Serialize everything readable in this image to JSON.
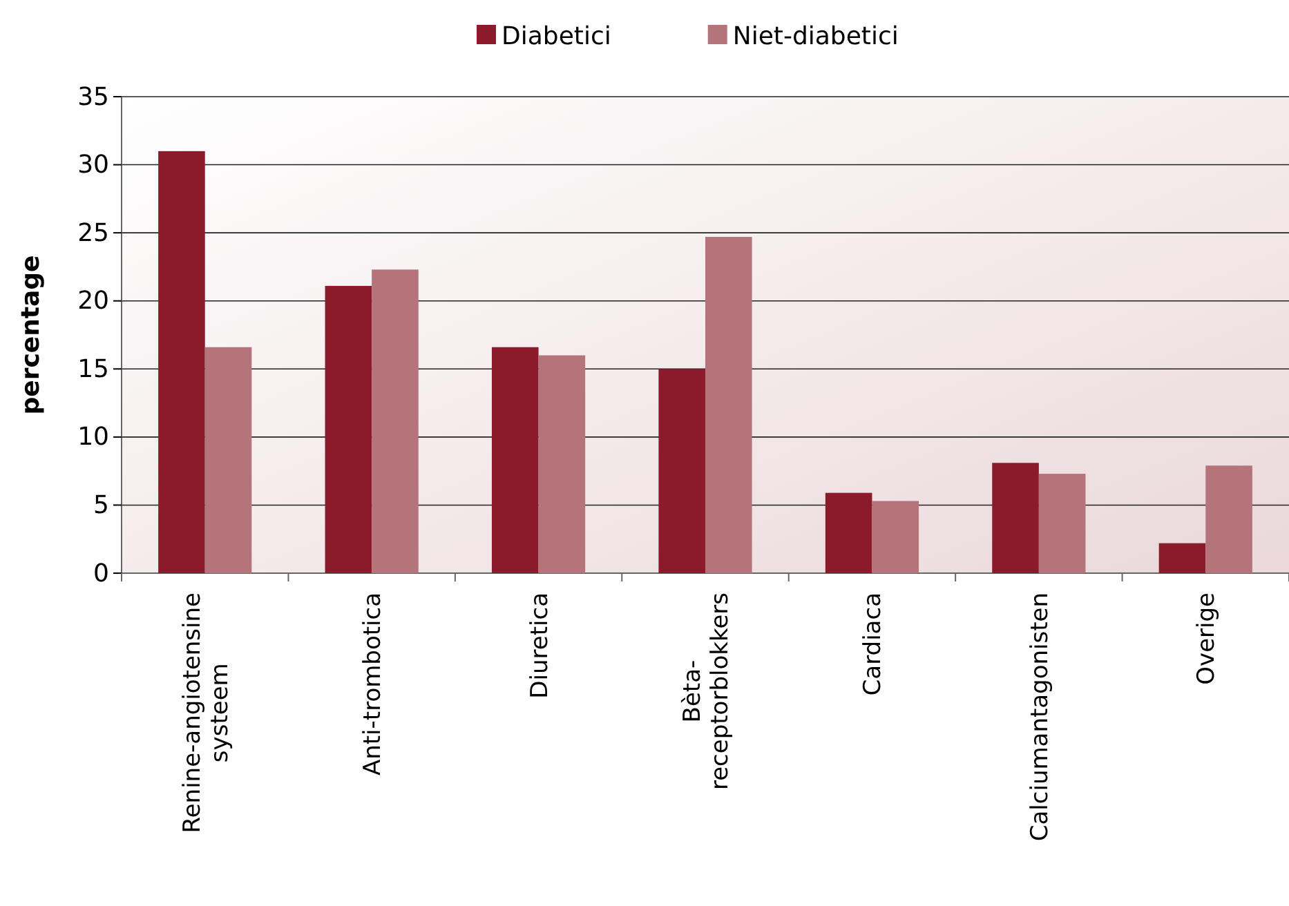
{
  "chart_data": {
    "type": "bar",
    "ylabel": "percentage",
    "categories": [
      "Renine-angiotensine systeem",
      "Anti-trombotica",
      "Diuretica",
      "Bèta-receptorblokkers",
      "Cardiaca",
      "Calciumantagonisten",
      "Overige"
    ],
    "series": [
      {
        "name": "Diabetici",
        "color": "#8b1a2b",
        "values": [
          31.0,
          21.1,
          16.6,
          15.0,
          5.9,
          8.1,
          2.2
        ]
      },
      {
        "name": "Niet-diabetici",
        "color": "#b5737a",
        "values": [
          16.6,
          22.3,
          16.0,
          24.7,
          5.3,
          7.3,
          7.9
        ]
      }
    ],
    "ylim": [
      0,
      35
    ],
    "yticks": [
      0,
      5,
      10,
      15,
      20,
      25,
      30,
      35
    ],
    "grid": "y",
    "legend": "top"
  }
}
